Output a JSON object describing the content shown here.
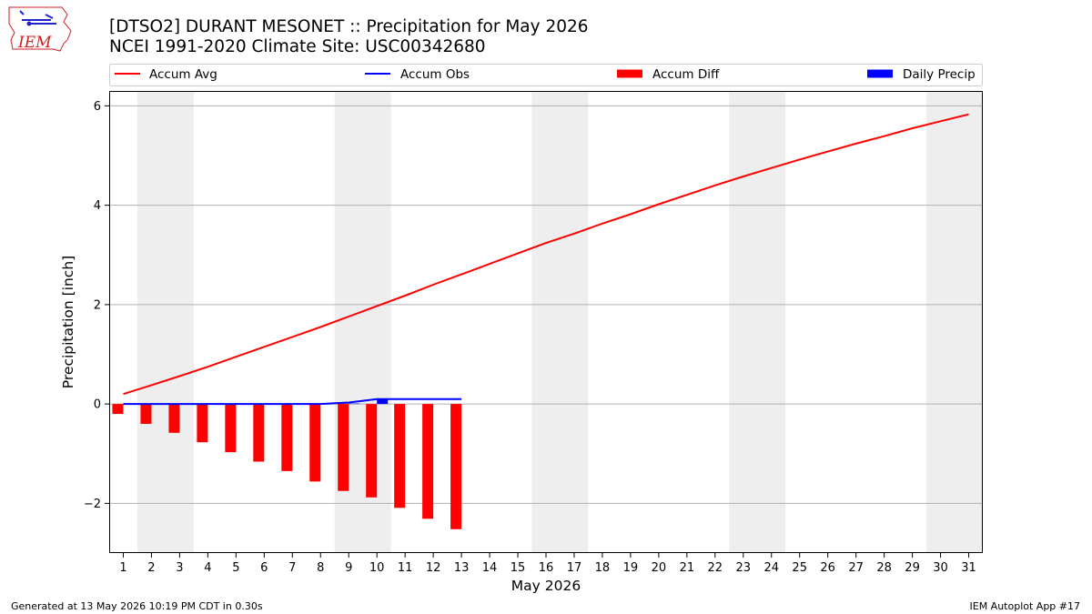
{
  "header": {
    "title_line1": "[DTSO2] DURANT MESONET :: Precipitation for May 2026",
    "title_line2": "NCEI 1991-2020 Climate Site: USC00342680",
    "logo_text": "IEM"
  },
  "footer": {
    "left": "Generated at 13 May 2026 10:19 PM CDT in 0.30s",
    "right": "IEM Autoplot App #17"
  },
  "colors": {
    "accum_avg": "#ff0000",
    "accum_obs": "#0000ff",
    "accum_diff": "#ff0000",
    "daily_precip": "#0000ff",
    "weekend_shade": "#eeeeee",
    "grid": "#b0b0b0"
  },
  "chart_data": {
    "type": "line",
    "xlabel": "May 2026",
    "ylabel": "Precipitation [inch]",
    "xlim": [
      0.5,
      31.5
    ],
    "ylim": [
      -3.0,
      6.3
    ],
    "yticks": [
      -2,
      0,
      2,
      4,
      6
    ],
    "ytick_labels": [
      "−2",
      "0",
      "2",
      "4",
      "6"
    ],
    "xticks": [
      1,
      2,
      3,
      4,
      5,
      6,
      7,
      8,
      9,
      10,
      11,
      12,
      13,
      14,
      15,
      16,
      17,
      18,
      19,
      20,
      21,
      22,
      23,
      24,
      25,
      26,
      27,
      28,
      29,
      30,
      31
    ],
    "grid": "horizontal",
    "legend_position": "top",
    "legend": [
      {
        "label": "Accum Avg",
        "kind": "line",
        "color": "#ff0000"
      },
      {
        "label": "Accum Obs",
        "kind": "line",
        "color": "#0000ff"
      },
      {
        "label": "Accum Diff",
        "kind": "bar",
        "color": "#ff0000"
      },
      {
        "label": "Daily Precip",
        "kind": "bar",
        "color": "#0000ff"
      }
    ],
    "weekend_spans": [
      [
        1.5,
        3.5
      ],
      [
        8.5,
        10.5
      ],
      [
        15.5,
        17.5
      ],
      [
        22.5,
        24.5
      ],
      [
        29.5,
        31.5
      ]
    ],
    "series": [
      {
        "name": "Accum Avg",
        "kind": "line",
        "x": [
          1,
          2,
          3,
          4,
          5,
          6,
          7,
          8,
          9,
          10,
          11,
          12,
          13,
          14,
          15,
          16,
          17,
          18,
          19,
          20,
          21,
          22,
          23,
          24,
          25,
          26,
          27,
          28,
          29,
          30,
          31
        ],
        "values": [
          0.2,
          0.38,
          0.56,
          0.75,
          0.95,
          1.15,
          1.35,
          1.55,
          1.76,
          1.97,
          2.18,
          2.4,
          2.61,
          2.82,
          3.03,
          3.24,
          3.43,
          3.63,
          3.82,
          4.02,
          4.21,
          4.4,
          4.58,
          4.75,
          4.92,
          5.08,
          5.24,
          5.39,
          5.55,
          5.69,
          5.83
        ]
      },
      {
        "name": "Accum Obs",
        "kind": "line",
        "x": [
          1,
          2,
          3,
          4,
          5,
          6,
          7,
          8,
          9,
          10,
          11,
          12,
          13
        ],
        "values": [
          0,
          0,
          0,
          0,
          0,
          0,
          0,
          0,
          0.03,
          0.1,
          0.1,
          0.1,
          0.1
        ]
      },
      {
        "name": "Accum Diff",
        "kind": "bar",
        "x": [
          1,
          2,
          3,
          4,
          5,
          6,
          7,
          8,
          9,
          10,
          11,
          12,
          13
        ],
        "values": [
          -0.2,
          -0.4,
          -0.58,
          -0.77,
          -0.97,
          -1.16,
          -1.35,
          -1.56,
          -1.75,
          -1.88,
          -2.09,
          -2.31,
          -2.52
        ]
      },
      {
        "name": "Daily Precip",
        "kind": "bar",
        "x": [
          1,
          2,
          3,
          4,
          5,
          6,
          7,
          8,
          9,
          10,
          11,
          12,
          13
        ],
        "values": [
          0,
          0,
          0,
          0,
          0,
          0,
          0,
          0,
          0.01,
          0.09,
          0,
          0,
          0
        ]
      }
    ]
  }
}
